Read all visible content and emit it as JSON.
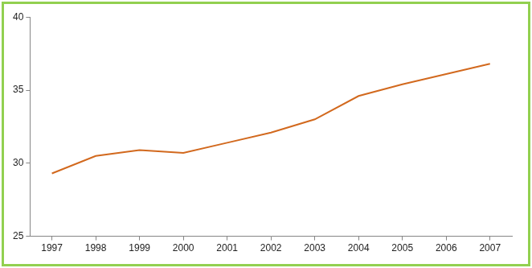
{
  "chart_data": {
    "type": "line",
    "categories": [
      "1997",
      "1998",
      "1999",
      "2000",
      "2001",
      "2002",
      "2003",
      "2004",
      "2005",
      "2006",
      "2007"
    ],
    "values": [
      29.3,
      30.5,
      30.9,
      30.7,
      31.4,
      32.1,
      33.0,
      34.6,
      35.4,
      36.1,
      36.8
    ],
    "color": "#d2691e",
    "ylim": [
      25,
      40
    ],
    "yticks": [
      25,
      30,
      35,
      40
    ],
    "grid": false
  }
}
